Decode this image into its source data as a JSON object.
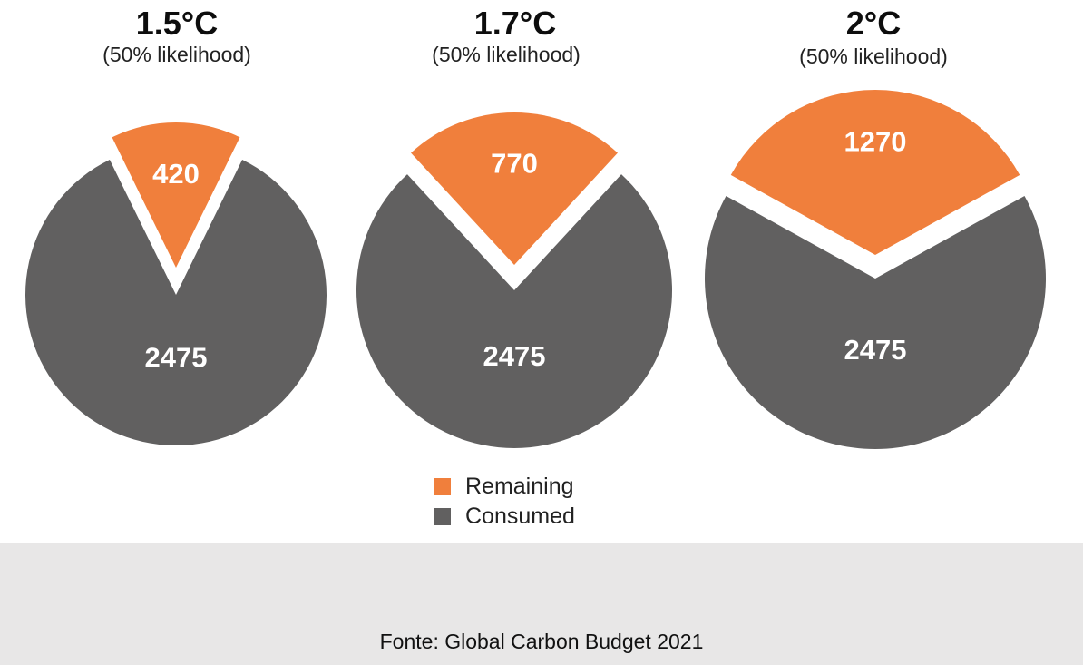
{
  "chart_data": {
    "type": "pie",
    "series_names": [
      "Remaining",
      "Consumed"
    ],
    "colors": {
      "Remaining": "#f07f3c",
      "Consumed": "#616060"
    },
    "pies": [
      {
        "title": "1.5°C",
        "subtitle": "(50% likelihood)",
        "remaining": 420,
        "consumed": 2475
      },
      {
        "title": "1.7°C",
        "subtitle": "(50% likelihood)",
        "remaining": 770,
        "consumed": 2475
      },
      {
        "title": "2°C",
        "subtitle": "(50% likelihood)",
        "remaining": 1270,
        "consumed": 2475
      }
    ],
    "legend": [
      {
        "label": "Remaining",
        "color": "#f07f3c"
      },
      {
        "label": "Consumed",
        "color": "#616060"
      }
    ],
    "legend_position": "bottom-center"
  },
  "source": "Fonte: Global Carbon Budget 2021"
}
